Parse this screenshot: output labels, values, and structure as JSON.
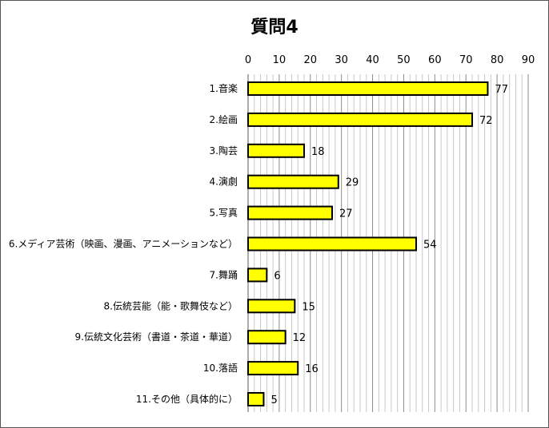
{
  "chart_data": {
    "type": "bar",
    "orientation": "horizontal",
    "title": "質問4",
    "xlabel": "",
    "ylabel": "",
    "xlim": [
      0,
      90
    ],
    "x_ticks": [
      0,
      10,
      20,
      30,
      40,
      50,
      60,
      70,
      80,
      90
    ],
    "grid": true,
    "legend": "none",
    "bar_color": "#FFFF00",
    "bar_edge_color": "#000000",
    "categories": [
      "1.音楽",
      "2.絵画",
      "3.陶芸",
      "4.演劇",
      "5.写真",
      "6.メディア芸術（映画、漫画、アニメーションなど）",
      "7.舞踊",
      "8.伝統芸能（能・歌舞伎など）",
      "9.伝統文化芸術（書道・茶道・華道）",
      "10.落語",
      "11.その他（具体的に）"
    ],
    "values": [
      77,
      72,
      18,
      29,
      27,
      54,
      6,
      15,
      12,
      16,
      5
    ]
  }
}
